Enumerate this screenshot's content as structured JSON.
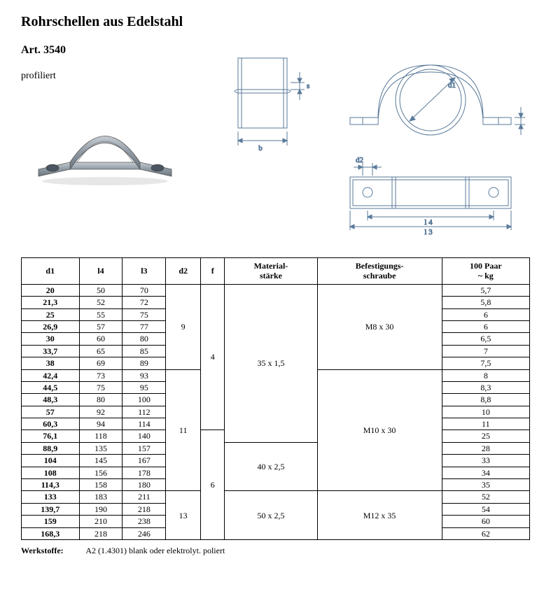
{
  "title": "Rohrschellen aus Edelstahl",
  "article": "Art. 3540",
  "subtitle": "profiliert",
  "diagram_labels": {
    "b": "b",
    "s": "s",
    "d1": "d1",
    "f": "f",
    "d2": "d2",
    "l4": "l 4",
    "l3": "l 3"
  },
  "table": {
    "headers": [
      "d1",
      "l4",
      "l3",
      "d2",
      "f",
      "Material-\nstärke",
      "Befestigungs-\nschraube",
      "100 Paar\n~ kg"
    ],
    "rows": [
      {
        "d1": "20",
        "l4": "50",
        "l3": "70",
        "kg": "5,7"
      },
      {
        "d1": "21,3",
        "l4": "52",
        "l3": "72",
        "kg": "5,8"
      },
      {
        "d1": "25",
        "l4": "55",
        "l3": "75",
        "kg": "6"
      },
      {
        "d1": "26,9",
        "l4": "57",
        "l3": "77",
        "kg": "6"
      },
      {
        "d1": "30",
        "l4": "60",
        "l3": "80",
        "kg": "6,5"
      },
      {
        "d1": "33,7",
        "l4": "65",
        "l3": "85",
        "kg": "7"
      },
      {
        "d1": "38",
        "l4": "69",
        "l3": "89",
        "kg": "7,5"
      },
      {
        "d1": "42,4",
        "l4": "73",
        "l3": "93",
        "kg": "8"
      },
      {
        "d1": "44,5",
        "l4": "75",
        "l3": "95",
        "kg": "8,3"
      },
      {
        "d1": "48,3",
        "l4": "80",
        "l3": "100",
        "kg": "8,8"
      },
      {
        "d1": "57",
        "l4": "92",
        "l3": "112",
        "kg": "10"
      },
      {
        "d1": "60,3",
        "l4": "94",
        "l3": "114",
        "kg": "11"
      },
      {
        "d1": "76,1",
        "l4": "118",
        "l3": "140",
        "kg": "25"
      },
      {
        "d1": "88,9",
        "l4": "135",
        "l3": "157",
        "kg": "28"
      },
      {
        "d1": "104",
        "l4": "145",
        "l3": "167",
        "kg": "33"
      },
      {
        "d1": "108",
        "l4": "156",
        "l3": "178",
        "kg": "34"
      },
      {
        "d1": "114,3",
        "l4": "158",
        "l3": "180",
        "kg": "35"
      },
      {
        "d1": "133",
        "l4": "183",
        "l3": "211",
        "kg": "52"
      },
      {
        "d1": "139,7",
        "l4": "190",
        "l3": "218",
        "kg": "54"
      },
      {
        "d1": "159",
        "l4": "210",
        "l3": "238",
        "kg": "60"
      },
      {
        "d1": "168,3",
        "l4": "218",
        "l3": "246",
        "kg": "62"
      }
    ],
    "d2_groups": [
      {
        "value": "9",
        "rowspan": 7
      },
      {
        "value": "11",
        "rowspan": 10
      },
      {
        "value": "13",
        "rowspan": 4
      }
    ],
    "f_groups": [
      {
        "value": "4",
        "rowspan": 12
      },
      {
        "value": "6",
        "rowspan": 9
      }
    ],
    "material_groups": [
      {
        "value": "35 x 1,5",
        "rowspan": 13
      },
      {
        "value": "40 x 2,5",
        "rowspan": 4
      },
      {
        "value": "50 x 2,5",
        "rowspan": 4
      }
    ],
    "schraube_groups": [
      {
        "value": "M8 x 30",
        "rowspan": 7
      },
      {
        "value": "M10 x 30",
        "rowspan": 10
      },
      {
        "value": "M12 x 35",
        "rowspan": 4
      }
    ]
  },
  "footer": {
    "label": "Werkstoffe:",
    "text": "A2 (1.4301) blank oder elektrolyt. poliert"
  },
  "colors": {
    "line": "#5a7a9a",
    "render_fill": "#9aa5b0",
    "render_dark": "#70808f"
  }
}
